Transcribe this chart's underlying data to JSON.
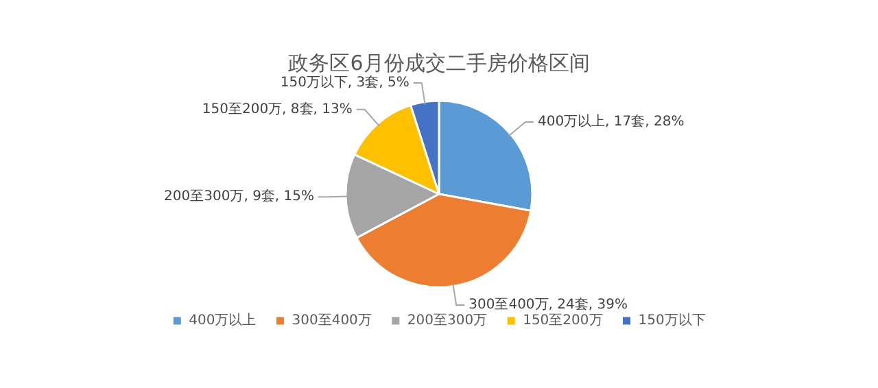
{
  "chart_data": {
    "type": "pie",
    "title": "政务区6月份成交二手房价格区间",
    "categories": [
      "400万以上",
      "300至400万",
      "200至300万",
      "150至200万",
      "150万以下"
    ],
    "values": [
      17,
      24,
      9,
      8,
      3
    ],
    "value_labels": [
      "400万以上, 17套, 28%",
      "300至400万, 24套, 39%",
      "200至300万, 9套, 15%",
      "150至200万, 8套, 13%",
      "150万以下, 3套, 5%"
    ],
    "colors": [
      "#5b9bd5",
      "#ed7d31",
      "#a5a5a5",
      "#ffc000",
      "#4472c4"
    ],
    "legend": "bottom"
  }
}
